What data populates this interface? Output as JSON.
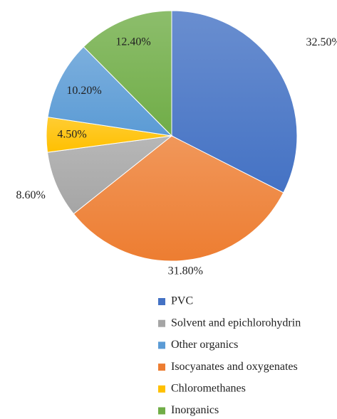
{
  "chart_data": {
    "type": "pie",
    "categories": [
      "PVC",
      "Isocyanates and oxygenates",
      "Solvent and epichlorohydrin",
      "Chloromethanes",
      "Other organics",
      "Inorganics"
    ],
    "values": [
      32.5,
      31.8,
      8.6,
      4.5,
      10.2,
      12.4
    ],
    "value_labels": [
      "32.50%",
      "31.80%",
      "8.60%",
      "4.50%",
      "10.20%",
      "12.40%"
    ],
    "colors": [
      "#4472c4",
      "#ed7d31",
      "#a5a5a5",
      "#ffc000",
      "#5b9bd5",
      "#70ad47"
    ],
    "legend": {
      "position": "bottom",
      "entries": [
        "PVC",
        "Solvent and epichlorohydrin",
        "Other organics",
        "Isocyanates and oxygenates",
        "Chloromethanes",
        "Inorganics"
      ]
    }
  }
}
